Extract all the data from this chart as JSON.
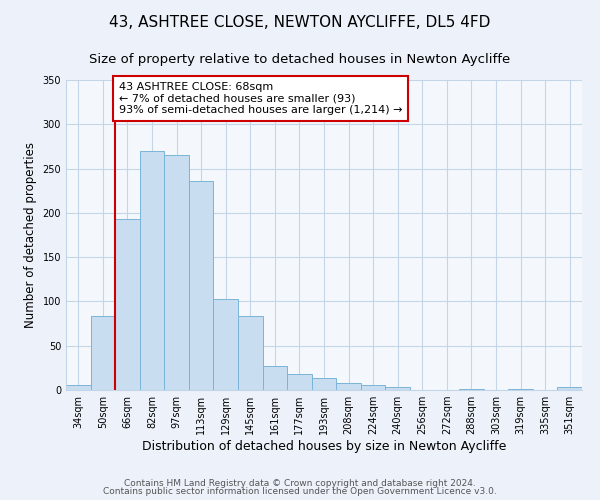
{
  "title": "43, ASHTREE CLOSE, NEWTON AYCLIFFE, DL5 4FD",
  "subtitle": "Size of property relative to detached houses in Newton Aycliffe",
  "xlabel": "Distribution of detached houses by size in Newton Aycliffe",
  "ylabel": "Number of detached properties",
  "categories": [
    "34sqm",
    "50sqm",
    "66sqm",
    "82sqm",
    "97sqm",
    "113sqm",
    "129sqm",
    "145sqm",
    "161sqm",
    "177sqm",
    "193sqm",
    "208sqm",
    "224sqm",
    "240sqm",
    "256sqm",
    "272sqm",
    "288sqm",
    "303sqm",
    "319sqm",
    "335sqm",
    "351sqm"
  ],
  "values": [
    6,
    83,
    193,
    270,
    265,
    236,
    103,
    84,
    27,
    18,
    14,
    8,
    6,
    3,
    0,
    0,
    1,
    0,
    1,
    0,
    3
  ],
  "bar_color": "#c8ddf0",
  "bar_edge_color": "#7ab4d8",
  "bar_edge_width": 0.7,
  "vline_color": "#cc0000",
  "annotation_text": "43 ASHTREE CLOSE: 68sqm\n← 7% of detached houses are smaller (93)\n93% of semi-detached houses are larger (1,214) →",
  "annotation_box_color": "white",
  "annotation_box_edge_color": "#cc0000",
  "ylim": [
    0,
    350
  ],
  "yticks": [
    0,
    50,
    100,
    150,
    200,
    250,
    300,
    350
  ],
  "footer1": "Contains HM Land Registry data © Crown copyright and database right 2024.",
  "footer2": "Contains public sector information licensed under the Open Government Licence v3.0.",
  "bg_color": "#edf2fa",
  "plot_bg_color": "#f4f8fd",
  "grid_color": "#c5d5e8",
  "title_fontsize": 11,
  "subtitle_fontsize": 9.5,
  "footer_fontsize": 6.5,
  "xlabel_fontsize": 9,
  "ylabel_fontsize": 8.5,
  "tick_fontsize": 7,
  "annotation_fontsize": 8
}
